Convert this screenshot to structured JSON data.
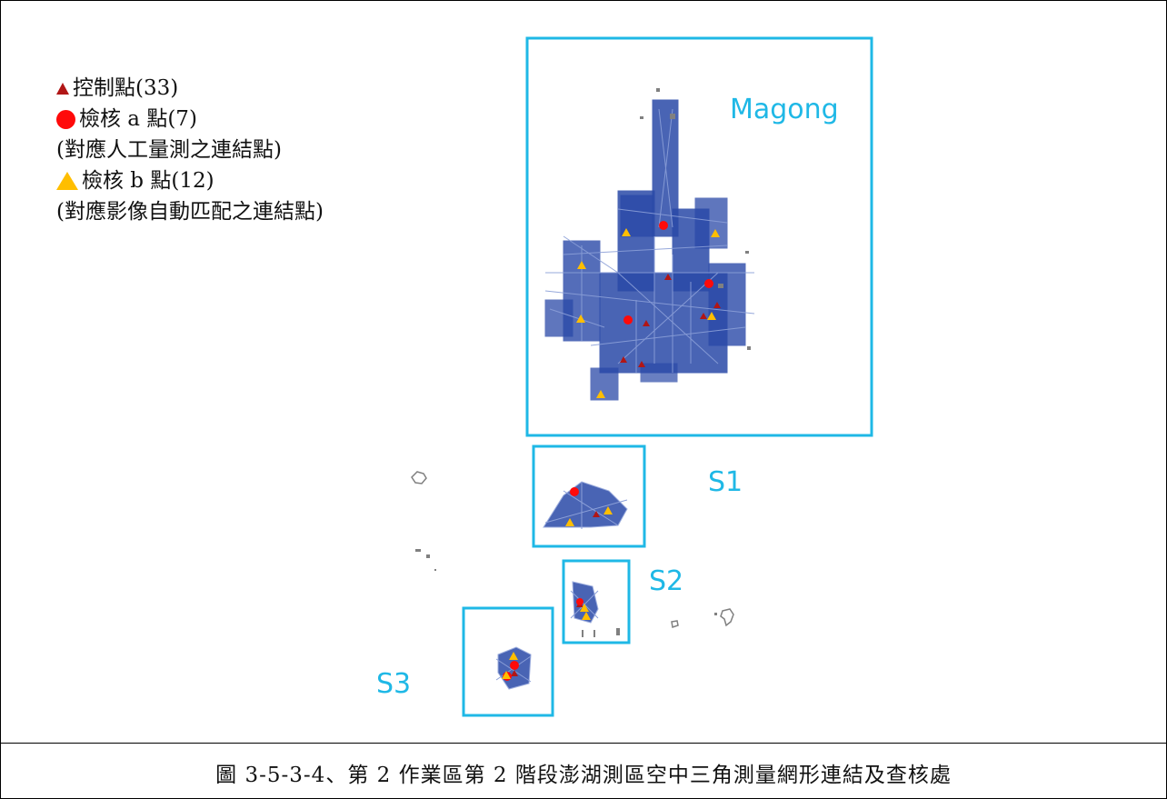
{
  "legend": {
    "control": "控制點(33)",
    "check_a": "檢核 a 點(7)",
    "check_a_note": "(對應人工量測之連結點)",
    "check_b": "檢核 b 點(12)",
    "check_b_note": "(對應影像自動匹配之連結點)"
  },
  "regions": {
    "magong": "Magong",
    "s1": "S1",
    "s2": "S2",
    "s3": "S3"
  },
  "colors": {
    "region_box": "#1fb8e6",
    "network": "#2a49a8",
    "network_light": "#8b9fd8",
    "control_point": "#b11616",
    "check_a": "#ff0a0a",
    "check_b": "#ffbe00",
    "island": "#808080"
  },
  "caption": "圖 3-5-3-4、第 2 作業區第 2 階段澎湖測區空中三角測量網形連結及查核處"
}
